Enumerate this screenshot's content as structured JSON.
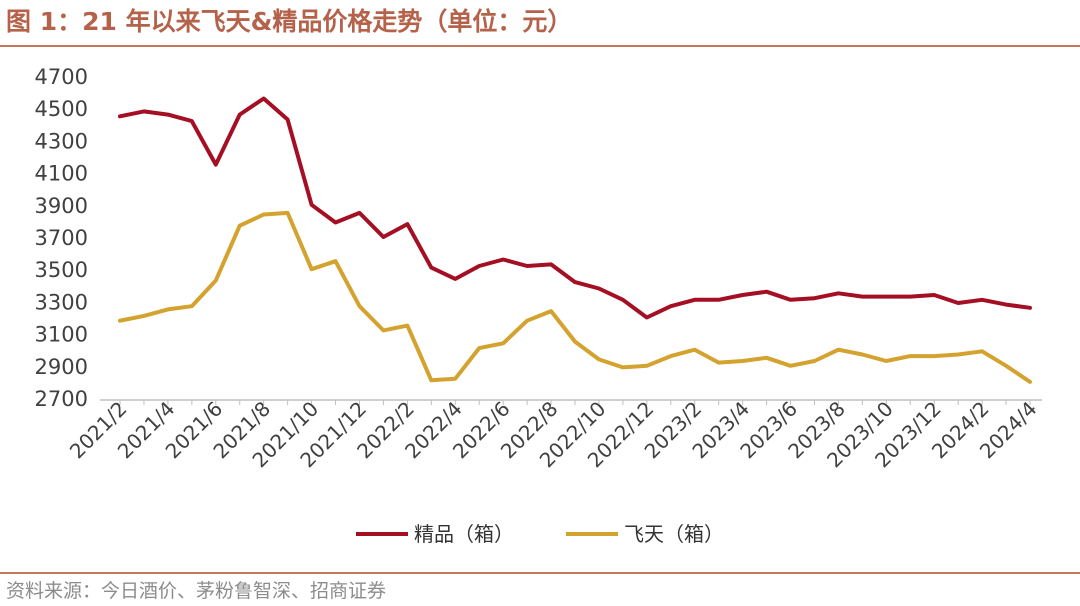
{
  "figure": {
    "title": "图 1：21 年以来飞天&精品价格走势（单位：元）",
    "source": "资料来源：今日酒价、茅粉鲁智深、招商证券"
  },
  "colors": {
    "header_accent": "#b5624a",
    "rule": "#c7775c",
    "series_jingpin": "#a50f24",
    "series_feitian": "#d4a22e",
    "axis_text": "#404040",
    "source_text": "#8c8c8c"
  },
  "chart_data": {
    "type": "line",
    "title": "",
    "xlabel": "",
    "ylabel": "",
    "ylim": [
      2700,
      4700
    ],
    "yticks": [
      2700,
      2900,
      3100,
      3300,
      3500,
      3700,
      3900,
      4100,
      4300,
      4500,
      4700
    ],
    "grid": false,
    "legend_position": "bottom",
    "x": [
      "2021/2",
      "2021/3",
      "2021/4",
      "2021/5",
      "2021/6",
      "2021/7",
      "2021/8",
      "2021/9",
      "2021/10",
      "2021/11",
      "2021/12",
      "2022/1",
      "2022/2",
      "2022/3",
      "2022/4",
      "2022/5",
      "2022/6",
      "2022/7",
      "2022/8",
      "2022/9",
      "2022/10",
      "2022/11",
      "2022/12",
      "2023/1",
      "2023/2",
      "2023/3",
      "2023/4",
      "2023/5",
      "2023/6",
      "2023/7",
      "2023/8",
      "2023/9",
      "2023/10",
      "2023/11",
      "2023/12",
      "2024/1",
      "2024/2",
      "2024/3",
      "2024/4"
    ],
    "xtick_labels": [
      "2021/2",
      "2021/4",
      "2021/6",
      "2021/8",
      "2021/10",
      "2021/12",
      "2022/2",
      "2022/4",
      "2022/6",
      "2022/8",
      "2022/10",
      "2022/12",
      "2023/2",
      "2023/4",
      "2023/6",
      "2023/8",
      "2023/10",
      "2023/12",
      "2024/2",
      "2024/4"
    ],
    "series": [
      {
        "name": "精品（箱）",
        "color": "#a50f24",
        "values": [
          4450,
          4480,
          4460,
          4420,
          4150,
          4460,
          4560,
          4430,
          3900,
          3790,
          3850,
          3700,
          3780,
          3510,
          3440,
          3520,
          3560,
          3520,
          3530,
          3420,
          3380,
          3310,
          3200,
          3270,
          3310,
          3310,
          3340,
          3360,
          3310,
          3320,
          3350,
          3330,
          3330,
          3330,
          3340,
          3290,
          3310,
          3280,
          3260
        ]
      },
      {
        "name": "飞天（箱）",
        "color": "#d4a22e",
        "values": [
          3180,
          3210,
          3250,
          3270,
          3430,
          3770,
          3840,
          3850,
          3500,
          3550,
          3270,
          3120,
          3150,
          2810,
          2820,
          3010,
          3040,
          3180,
          3240,
          3050,
          2940,
          2890,
          2900,
          2960,
          3000,
          2920,
          2930,
          2950,
          2900,
          2930,
          3000,
          2970,
          2930,
          2960,
          2960,
          2970,
          2990,
          2900,
          2800
        ]
      }
    ]
  }
}
